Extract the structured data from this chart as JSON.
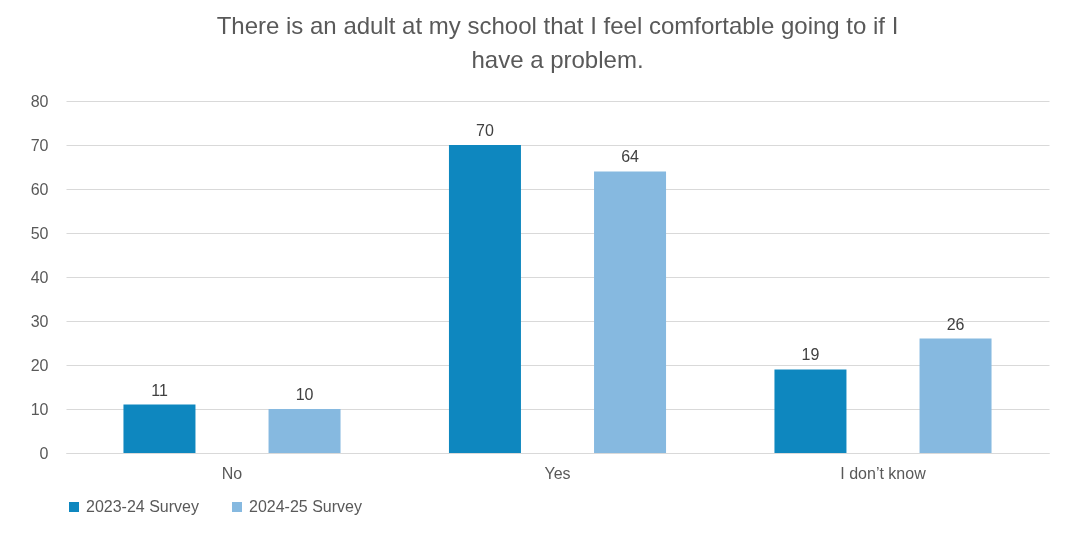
{
  "chart_data": {
    "type": "bar",
    "title": "There is an adult at my school that I feel comfortable going to if I have a problem.",
    "categories": [
      "No",
      "Yes",
      "I don’t know"
    ],
    "series": [
      {
        "name": "2023-24 Survey",
        "color": "#0e87bf",
        "values": [
          11,
          70,
          19
        ]
      },
      {
        "name": "2024-25 Survey",
        "color": "#86b9e0",
        "values": [
          10,
          64,
          26
        ]
      }
    ],
    "ylim": [
      0,
      80
    ],
    "yticks": [
      0,
      10,
      20,
      30,
      40,
      50,
      60,
      70,
      80
    ],
    "grid": "y",
    "legend": "bottom",
    "data_labels": true
  }
}
